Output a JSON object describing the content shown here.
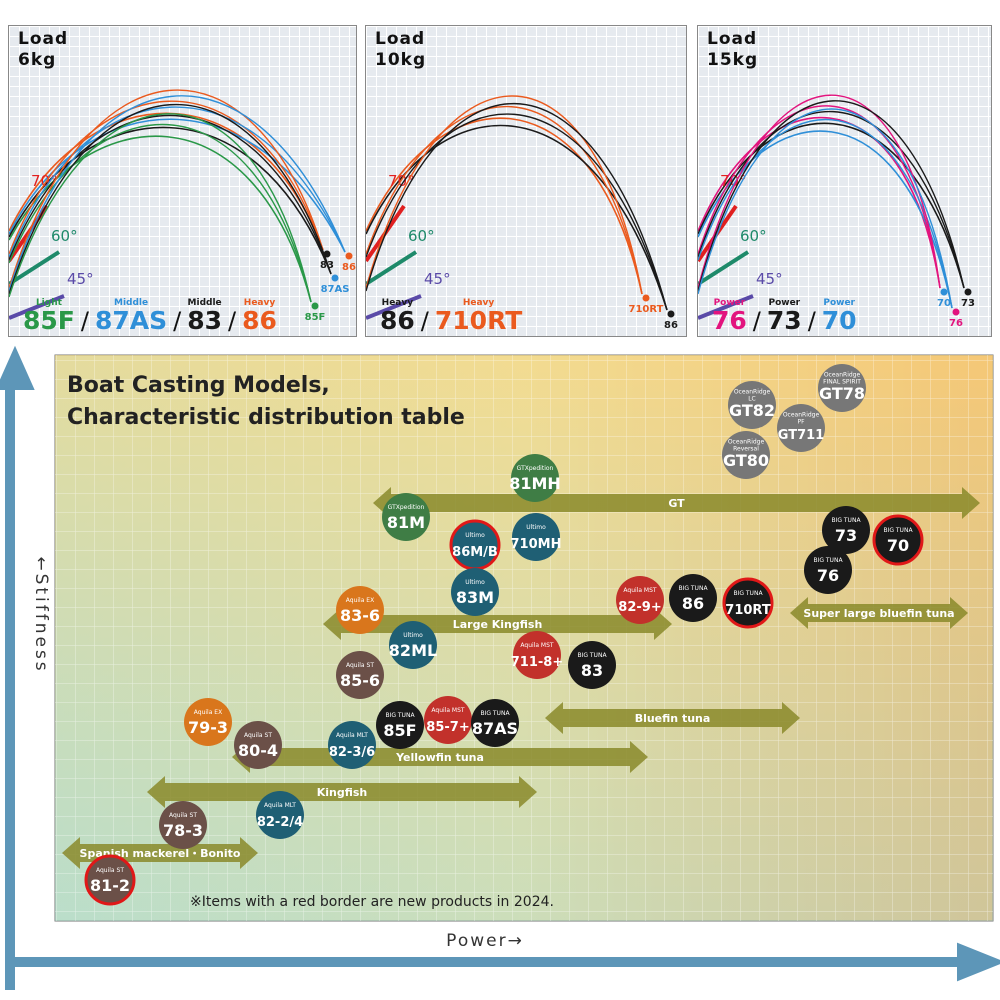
{
  "panels": [
    {
      "load_label": "Load",
      "load": "6kg",
      "angles": [
        "70°",
        "60°",
        "45°"
      ],
      "separator": "/",
      "models": [
        {
          "class": "Light",
          "name": "85F",
          "color": "#2a9848"
        },
        {
          "class": "Middle",
          "name": "87AS",
          "color": "#2f8fd8"
        },
        {
          "class": "Middle",
          "name": "83",
          "color": "#1a1a1a"
        },
        {
          "class": "Heavy",
          "name": "86",
          "color": "#ea5a1e"
        }
      ],
      "tips": [
        {
          "label": "83",
          "color": "#1a1a1a"
        },
        {
          "label": "86",
          "color": "#ea5a1e"
        },
        {
          "label": "87AS",
          "color": "#2f8fd8"
        },
        {
          "label": "85F",
          "color": "#2a9848"
        }
      ]
    },
    {
      "load_label": "Load",
      "load": "10kg",
      "angles": [
        "70°",
        "60°",
        "45°"
      ],
      "separator": "/",
      "models": [
        {
          "class": "Heavy",
          "name": "86",
          "color": "#1a1a1a"
        },
        {
          "class": "Heavy",
          "name": "710RT",
          "color": "#ea5a1e"
        }
      ],
      "tips": [
        {
          "label": "710RT",
          "color": "#ea5a1e"
        },
        {
          "label": "86",
          "color": "#1a1a1a"
        }
      ]
    },
    {
      "load_label": "Load",
      "load": "15kg",
      "angles": [
        "70°",
        "60°",
        "45°"
      ],
      "separator": "/",
      "models": [
        {
          "class": "Power",
          "name": "76",
          "color": "#e2147e"
        },
        {
          "class": "Power",
          "name": "73",
          "color": "#1a1a1a"
        },
        {
          "class": "Power",
          "name": "70",
          "color": "#2f8fd8"
        }
      ],
      "tips": [
        {
          "label": "70",
          "color": "#2f8fd8"
        },
        {
          "label": "73",
          "color": "#1a1a1a"
        },
        {
          "label": "76",
          "color": "#e2147e"
        }
      ]
    }
  ],
  "axes": {
    "y": "←Stiffness",
    "x": "Power→"
  },
  "table": {
    "title": [
      "Boat Casting Models,",
      "Characteristic distribution table"
    ],
    "note": "※Items with a red border are new products in 2024."
  },
  "ranges": [
    {
      "label": "GT"
    },
    {
      "label": "Large Kingfish"
    },
    {
      "label": "Super large bluefin tuna"
    },
    {
      "label": "Bluefin tuna"
    },
    {
      "label": "Yellowfin tuna"
    },
    {
      "label": "Kingfish"
    },
    {
      "label": "Spanish mackerel・Bonito"
    }
  ],
  "rods": [
    {
      "series": [
        "OceanRidge",
        "LC"
      ],
      "model": "GT82",
      "color": "#777777",
      "new": false
    },
    {
      "series": [
        "OceanRidge",
        "FINAL SPIRIT"
      ],
      "model": "GT78",
      "color": "#777777",
      "new": false
    },
    {
      "series": [
        "OceanRidge",
        "PF"
      ],
      "model": "GT711",
      "color": "#777777",
      "new": false
    },
    {
      "series": [
        "OceanRidge",
        "Reversal"
      ],
      "model": "GT80",
      "color": "#777777",
      "new": false
    },
    {
      "series": [
        "GTXpedition"
      ],
      "model": "81MH",
      "color": "#3f7d45",
      "new": false
    },
    {
      "series": [
        "GTXpedition"
      ],
      "model": "81M",
      "color": "#3f7d45",
      "new": false
    },
    {
      "series": [
        "Ultimo"
      ],
      "model": "86M/B",
      "color": "#1f5f74",
      "new": true
    },
    {
      "series": [
        "Ultimo"
      ],
      "model": "710MH",
      "color": "#1f5f74",
      "new": false
    },
    {
      "series": [
        "BIG TUNA"
      ],
      "model": "73",
      "color": "#1a1a1a",
      "new": false
    },
    {
      "series": [
        "BIG TUNA"
      ],
      "model": "70",
      "color": "#1a1a1a",
      "new": true
    },
    {
      "series": [
        "BIG TUNA"
      ],
      "model": "76",
      "color": "#1a1a1a",
      "new": false
    },
    {
      "series": [
        "Ultimo"
      ],
      "model": "83M",
      "color": "#1f5f74",
      "new": false
    },
    {
      "series": [
        "Aquila MST"
      ],
      "model": "82-9+",
      "color": "#c2312b",
      "new": false
    },
    {
      "series": [
        "BIG TUNA"
      ],
      "model": "86",
      "color": "#1a1a1a",
      "new": false
    },
    {
      "series": [
        "BIG TUNA"
      ],
      "model": "710RT",
      "color": "#1a1a1a",
      "new": true
    },
    {
      "series": [
        "Aquila EX"
      ],
      "model": "83-6",
      "color": "#d9761c",
      "new": false
    },
    {
      "series": [
        "Ultimo"
      ],
      "model": "82ML",
      "color": "#1f5f74",
      "new": false
    },
    {
      "series": [
        "Aquila MST"
      ],
      "model": "711-8+",
      "color": "#c2312b",
      "new": false
    },
    {
      "series": [
        "BIG TUNA"
      ],
      "model": "83",
      "color": "#1a1a1a",
      "new": false
    },
    {
      "series": [
        "Aquila ST"
      ],
      "model": "85-6",
      "color": "#6b5048",
      "new": false
    },
    {
      "series": [
        "Aquila EX"
      ],
      "model": "79-3",
      "color": "#d9761c",
      "new": false
    },
    {
      "series": [
        "BIG TUNA"
      ],
      "model": "85F",
      "color": "#1a1a1a",
      "new": false
    },
    {
      "series": [
        "Aquila MST"
      ],
      "model": "85-7+",
      "color": "#c2312b",
      "new": false
    },
    {
      "series": [
        "BIG TUNA"
      ],
      "model": "87AS",
      "color": "#1a1a1a",
      "new": false
    },
    {
      "series": [
        "Aquila ST"
      ],
      "model": "80-4",
      "color": "#6b5048",
      "new": false
    },
    {
      "series": [
        "Aquila MLT"
      ],
      "model": "82-3/6",
      "color": "#1f5f74",
      "new": false
    },
    {
      "series": [
        "Aquila MLT"
      ],
      "model": "82-2/4",
      "color": "#1f5f74",
      "new": false
    },
    {
      "series": [
        "Aquila ST"
      ],
      "model": "78-3",
      "color": "#6b5048",
      "new": false
    },
    {
      "series": [
        "Aquila ST"
      ],
      "model": "81-2",
      "color": "#6b5048",
      "new": true
    }
  ]
}
